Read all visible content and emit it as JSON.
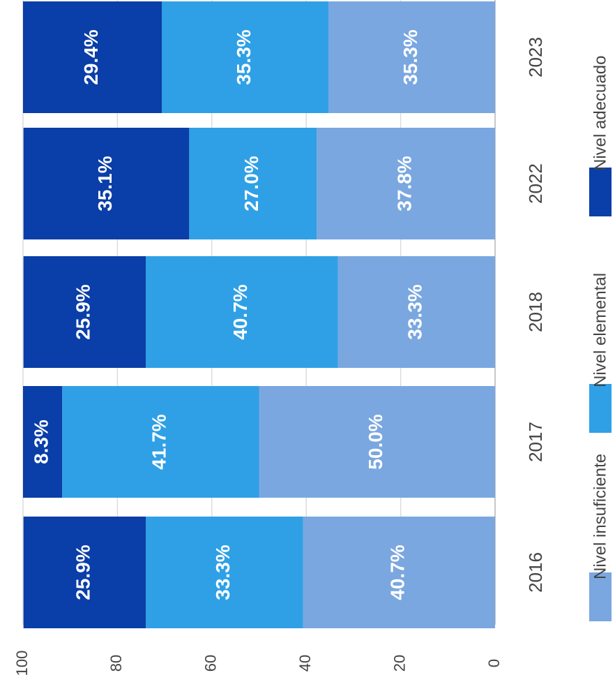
{
  "chart_data": {
    "type": "bar",
    "stacked": true,
    "orientation": "rotated-90",
    "categories": [
      "2016",
      "2017",
      "2018",
      "2022",
      "2023"
    ],
    "series": [
      {
        "name": "Nivel insuficiente",
        "color": "#7aa7e0",
        "values": [
          40.7,
          50.0,
          33.3,
          37.8,
          35.3
        ],
        "labels": [
          "40.7%",
          "50.0%",
          "33.3%",
          "37.8%",
          "35.3%"
        ]
      },
      {
        "name": "Nivel elemental",
        "color": "#2fa0e6",
        "values": [
          33.3,
          41.7,
          40.7,
          27.0,
          35.3
        ],
        "labels": [
          "33.3%",
          "41.7%",
          "40.7%",
          "27.0%",
          "35.3%"
        ]
      },
      {
        "name": "Nivel adecuado",
        "color": "#0a3ea8",
        "values": [
          25.9,
          8.3,
          25.9,
          35.1,
          29.4
        ],
        "labels": [
          "25.9%",
          "8.3%",
          "25.9%",
          "35.1%",
          "29.4%"
        ]
      }
    ],
    "y_axis": {
      "min": 0,
      "max": 100,
      "ticks": [
        "0",
        "20",
        "40",
        "60",
        "80",
        "100"
      ]
    },
    "grid": true,
    "legend_position": "bottom"
  }
}
